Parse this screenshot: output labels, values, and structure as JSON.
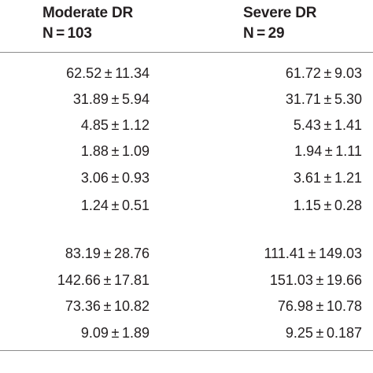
{
  "columns": [
    {
      "title": "Moderate DR",
      "n": "N = 103"
    },
    {
      "title": "Severe DR",
      "n": "N = 29"
    }
  ],
  "group1": [
    [
      "62.52 ± 11.34",
      "61.72 ± 9.03"
    ],
    [
      "31.89 ± 5.94",
      "31.71 ± 5.30"
    ],
    [
      "4.85 ± 1.12",
      "5.43 ± 1.41"
    ],
    [
      "1.88 ± 1.09",
      "1.94 ± 1.11"
    ],
    [
      "3.06 ± 0.93",
      "3.61 ± 1.21"
    ],
    [
      "1.24 ± 0.51",
      "1.15 ± 0.28"
    ]
  ],
  "group2": [
    [
      "83.19 ± 28.76",
      "111.41 ± 149.03"
    ],
    [
      "142.66 ± 17.81",
      "151.03 ± 19.66"
    ],
    [
      "73.36 ± 10.82",
      "76.98 ± 10.78"
    ],
    [
      "9.09 ± 1.89",
      "9.25 ± 0.187"
    ]
  ]
}
